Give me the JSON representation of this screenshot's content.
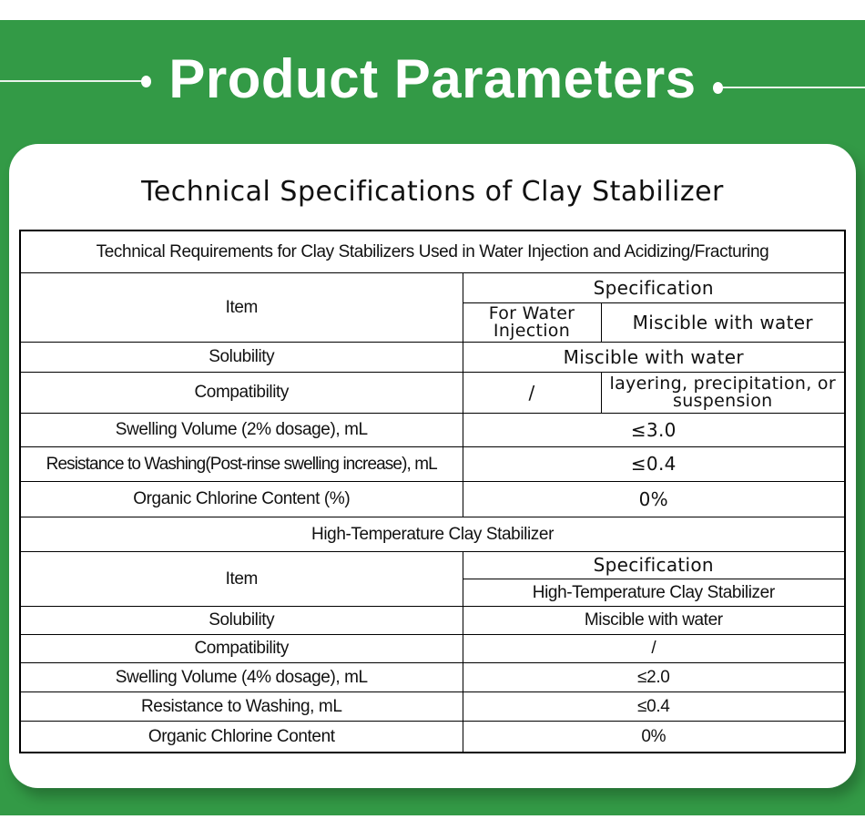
{
  "header": {
    "title": "Product Parameters"
  },
  "colors": {
    "background_green": "#339a46",
    "card": "#ffffff",
    "text": "#111111"
  },
  "card": {
    "title": "Technical Specifications of Clay Stabilizer"
  },
  "table1": {
    "caption": "Technical Requirements for Clay Stabilizers Used in Water Injection and Acidizing/Fracturing",
    "item_header": "Item",
    "spec_header": "Specification",
    "sub_headers": [
      "For Water Injection",
      "Miscible with water"
    ],
    "rows": [
      {
        "item": "Solubility",
        "value": "Miscible with water"
      },
      {
        "item": "Compatibility",
        "value_a": "/",
        "value_b": "layering, precipitation, or suspension"
      },
      {
        "item": "Swelling Volume (2% dosage), mL",
        "value": "≤3.0"
      },
      {
        "item": "Resistance to Washing(Post-rinse swelling increase), mL",
        "value": "≤0.4"
      },
      {
        "item": "Organic Chlorine Content (%)",
        "value": "0%"
      }
    ]
  },
  "table2": {
    "caption": "High-Temperature Clay Stabilizer",
    "item_header": "Item",
    "spec_header": "Specification",
    "sub_header": "High-Temperature Clay Stabilizer",
    "rows": [
      {
        "item": "Solubility",
        "value": "Miscible with water"
      },
      {
        "item": "Compatibility",
        "value": "/"
      },
      {
        "item": "Swelling Volume (4% dosage), mL",
        "value": "≤2.0"
      },
      {
        "item": "Resistance to Washing, mL",
        "value": "≤0.4"
      },
      {
        "item": "Organic Chlorine Content",
        "value": "0%"
      }
    ]
  }
}
